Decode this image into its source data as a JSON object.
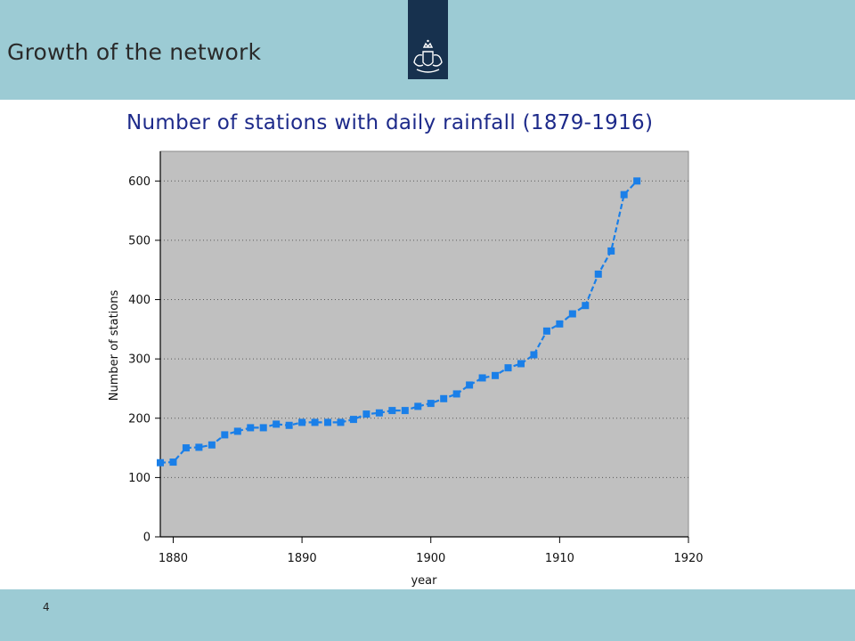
{
  "header": {
    "title": "Growth of the network",
    "logo_icon": "coat-of-arms-icon",
    "band_color": "#9ccbd4",
    "logo_color": "#17314e"
  },
  "footer": {
    "page_number": "4"
  },
  "chart_data": {
    "type": "line",
    "title": "Number of stations with daily rainfall (1879-1916)",
    "xlabel": "year",
    "ylabel": "Number of stations",
    "xlim": [
      1879,
      1920
    ],
    "ylim": [
      0,
      650
    ],
    "xticks": [
      1880,
      1890,
      1900,
      1910,
      1920
    ],
    "yticks": [
      0,
      100,
      200,
      300,
      400,
      500,
      600
    ],
    "grid": "horizontal dotted",
    "legend": "none",
    "plot_background": "#c0c0c0",
    "series_color": "#1a7fe8",
    "series": [
      {
        "x": [
          1879,
          1880,
          1881,
          1882,
          1883,
          1884,
          1885,
          1886,
          1887,
          1888,
          1889,
          1890,
          1891,
          1892,
          1893,
          1894,
          1895,
          1896,
          1897,
          1898,
          1899,
          1900,
          1901,
          1902,
          1903,
          1904,
          1905,
          1906,
          1907,
          1908,
          1909,
          1910,
          1911,
          1912,
          1913,
          1914,
          1915,
          1916
        ],
        "values": [
          125,
          126,
          150,
          151,
          155,
          172,
          178,
          184,
          184,
          190,
          188,
          193,
          193,
          193,
          193,
          198,
          207,
          209,
          213,
          213,
          220,
          225,
          233,
          241,
          256,
          268,
          272,
          285,
          292,
          307,
          347,
          359,
          376,
          390,
          443,
          482,
          577,
          600
        ]
      }
    ]
  }
}
